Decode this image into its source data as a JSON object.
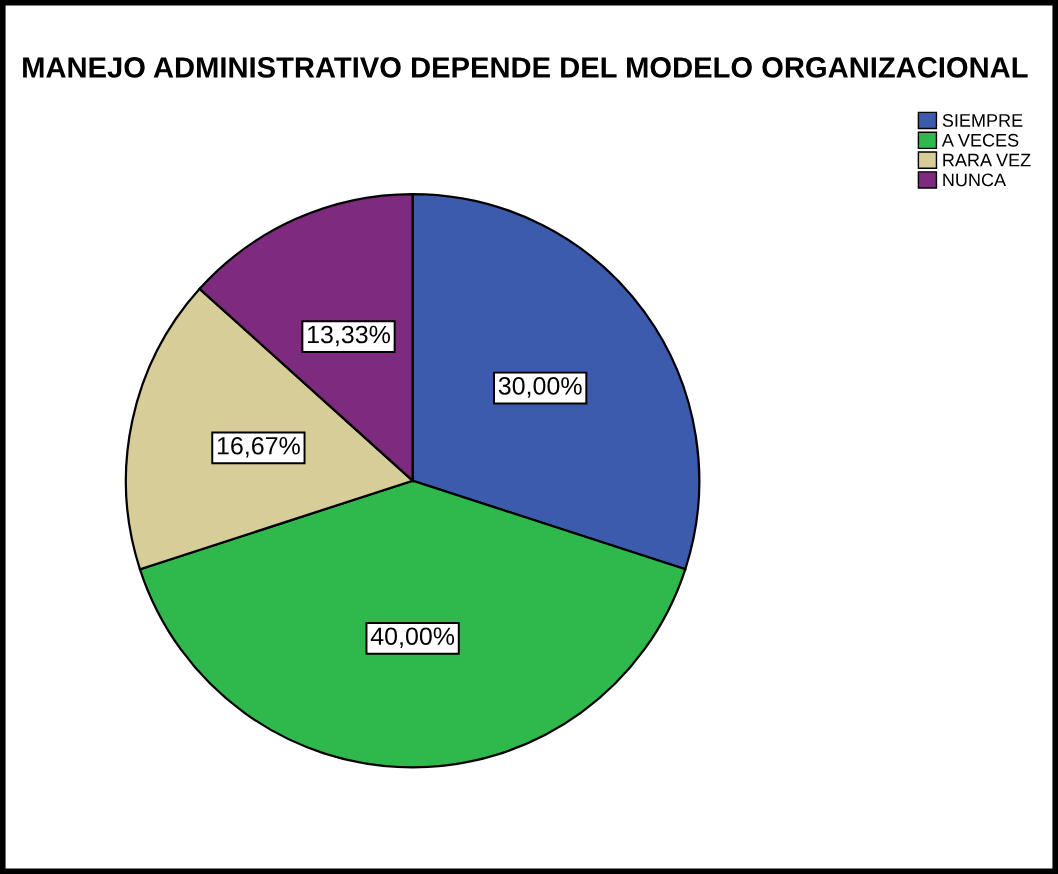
{
  "chart_data": {
    "type": "pie",
    "title": "MANEJO ADMINISTRATIVO DEPENDE DEL MODELO ORGANIZACIONAL",
    "categories": [
      "SIEMPRE",
      "A VECES",
      "RARA VEZ",
      "NUNCA"
    ],
    "values": [
      30,
      40,
      16.67,
      13.33
    ],
    "value_labels": [
      "30,00%",
      "40,00%",
      "16,67%",
      "13,33%"
    ],
    "colors": [
      "#3d5bad",
      "#2fb84b",
      "#d6cd98",
      "#7d2a7f"
    ],
    "legend": "top right"
  }
}
